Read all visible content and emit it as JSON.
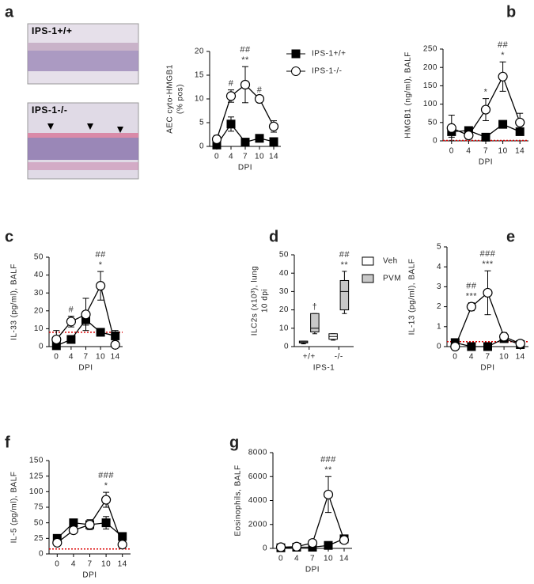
{
  "images": [
    {
      "label": "IPS-1+/+"
    },
    {
      "label": "IPS-1-/-"
    }
  ],
  "chart_data": [
    {
      "type": "line",
      "panel": "a",
      "ylabel": [
        "AEC cyto-HMGB1",
        "(% pos)"
      ],
      "xlabel": "DPI",
      "categories": [
        "0",
        "4",
        "7",
        "10",
        "14"
      ],
      "ylim": [
        0,
        20
      ],
      "yticks": [
        0,
        5,
        10,
        15,
        20
      ],
      "legend": true,
      "series": [
        {
          "name": "IPS-1+/+",
          "marker": "square",
          "color": "#000000",
          "values": [
            0.3,
            4.7,
            0.9,
            1.7,
            1.0
          ],
          "errors": [
            0.3,
            1.5,
            0.4,
            0.6,
            0.8
          ]
        },
        {
          "name": "IPS-1-/-",
          "marker": "circle",
          "color": "#ffffff",
          "values": [
            1.5,
            10.6,
            13,
            10,
            4.2
          ],
          "errors": [
            0.8,
            1.3,
            3.8,
            0.5,
            1.2
          ]
        }
      ],
      "annotations": [
        {
          "x": "4",
          "text": [
            "#"
          ]
        },
        {
          "x": "7",
          "text": [
            "##",
            "**"
          ]
        },
        {
          "x": "10",
          "text": [
            "#"
          ]
        }
      ]
    },
    {
      "type": "line",
      "panel": "b",
      "ylabel": [
        "HMGB1 (ng/ml), BALF"
      ],
      "xlabel": "DPI",
      "categories": [
        "0",
        "4",
        "7",
        "10",
        "14"
      ],
      "ylim": [
        0,
        250
      ],
      "yticks": [
        0,
        50,
        100,
        150,
        200,
        250
      ],
      "ref_line": 1,
      "series": [
        {
          "marker": "square",
          "color": "#000000",
          "values": [
            25,
            28,
            10,
            45,
            25
          ],
          "errors": [
            15,
            10,
            5,
            10,
            8
          ]
        },
        {
          "marker": "circle",
          "color": "#ffffff",
          "values": [
            35,
            15,
            85,
            175,
            50
          ],
          "errors": [
            35,
            10,
            30,
            40,
            25
          ]
        }
      ],
      "annotations": [
        {
          "x": "7",
          "text": [
            "*"
          ]
        },
        {
          "x": "10",
          "text": [
            "##",
            "*"
          ]
        }
      ]
    },
    {
      "type": "line",
      "panel": "c",
      "ylabel": [
        "IL-33 (pg/ml), BALF"
      ],
      "xlabel": "DPI",
      "categories": [
        "0",
        "4",
        "7",
        "10",
        "14"
      ],
      "ylim": [
        0,
        50
      ],
      "yticks": [
        0,
        10,
        20,
        30,
        40,
        50
      ],
      "ref_line": 8,
      "series": [
        {
          "marker": "square",
          "color": "#000000",
          "values": [
            0.5,
            4,
            15,
            8,
            6
          ],
          "errors": [
            1,
            1,
            3,
            1,
            3
          ]
        },
        {
          "marker": "circle",
          "color": "#ffffff",
          "values": [
            4,
            14,
            18,
            34,
            1
          ],
          "errors": [
            5,
            3,
            9,
            8,
            2
          ]
        }
      ],
      "annotations": [
        {
          "x": "4",
          "text": [
            "#"
          ]
        },
        {
          "x": "10",
          "text": [
            "##",
            "*"
          ]
        }
      ]
    },
    {
      "type": "box",
      "panel": "d",
      "ylabel": [
        "ILC2s (x10³), lung",
        "10 dpi"
      ],
      "xlabel": "IPS-1",
      "categories": [
        "+/+",
        "-/-"
      ],
      "ylim": [
        0,
        50
      ],
      "yticks": [
        0,
        10,
        20,
        30,
        40,
        50
      ],
      "legend": true,
      "series": [
        {
          "name": "Veh",
          "color": "#ffffff",
          "boxes": [
            {
              "min": 1.5,
              "q1": 2,
              "median": 2.5,
              "q3": 3,
              "max": 3
            },
            {
              "min": 3.5,
              "q1": 4,
              "median": 5.5,
              "q3": 7,
              "max": 7
            }
          ]
        },
        {
          "name": "PVM",
          "color": "#c8c8c8",
          "boxes": [
            {
              "min": 7,
              "q1": 8,
              "median": 10,
              "q3": 18,
              "max": 18
            },
            {
              "min": 18,
              "q1": 20,
              "median": 30,
              "q3": 36,
              "max": 41
            }
          ]
        }
      ],
      "annotations": [
        {
          "x": "+/+",
          "text": [
            "†"
          ]
        },
        {
          "x": "-/-",
          "text": [
            "##",
            "**"
          ]
        }
      ]
    },
    {
      "type": "line",
      "panel": "e",
      "ylabel": [
        "IL-13 (pg/ml), BALF"
      ],
      "xlabel": "DPI",
      "categories": [
        "0",
        "4",
        "7",
        "10",
        "14"
      ],
      "ylim": [
        0,
        5
      ],
      "yticks": [
        0,
        1,
        2,
        3,
        4,
        5
      ],
      "ref_line": 0.25,
      "series": [
        {
          "marker": "square",
          "color": "#000000",
          "values": [
            0.2,
            0,
            0,
            0.4,
            0.1
          ],
          "errors": [
            0.05,
            0,
            0,
            0.1,
            0.05
          ]
        },
        {
          "marker": "circle",
          "color": "#ffffff",
          "values": [
            0,
            2,
            2.7,
            0.5,
            0.15
          ],
          "errors": [
            0,
            0.2,
            1.1,
            0.2,
            0.1
          ]
        }
      ],
      "annotations": [
        {
          "x": "4",
          "text": [
            "##",
            "***"
          ]
        },
        {
          "x": "7",
          "text": [
            "###",
            "***"
          ]
        }
      ]
    },
    {
      "type": "line",
      "panel": "f",
      "ylabel": [
        "IL-5 (pg/ml), BALF"
      ],
      "xlabel": "DPI",
      "categories": [
        "0",
        "4",
        "7",
        "10",
        "14"
      ],
      "ylim": [
        0,
        150
      ],
      "yticks": [
        0,
        25,
        50,
        75,
        100,
        125,
        150
      ],
      "ref_line": 8,
      "series": [
        {
          "marker": "square",
          "color": "#000000",
          "values": [
            25,
            50,
            47,
            50,
            28
          ],
          "errors": [
            4,
            4,
            6,
            10,
            6
          ]
        },
        {
          "marker": "circle",
          "color": "#ffffff",
          "values": [
            18,
            38,
            47,
            87,
            15
          ],
          "errors": [
            4,
            4,
            8,
            12,
            4
          ]
        }
      ],
      "annotations": [
        {
          "x": "10",
          "text": [
            "###",
            "*"
          ]
        }
      ]
    },
    {
      "type": "line",
      "panel": "g",
      "ylabel": [
        "Eosinophils, BALF"
      ],
      "xlabel": "DPI",
      "categories": [
        "0",
        "4",
        "7",
        "10",
        "14"
      ],
      "ylim": [
        0,
        8000
      ],
      "yticks": [
        0,
        2000,
        4000,
        6000,
        8000
      ],
      "series": [
        {
          "marker": "square",
          "color": "#000000",
          "values": [
            50,
            100,
            100,
            250,
            800
          ],
          "errors": [
            30,
            50,
            50,
            100,
            250
          ]
        },
        {
          "marker": "circle",
          "color": "#ffffff",
          "values": [
            100,
            150,
            450,
            4500,
            700
          ],
          "errors": [
            50,
            80,
            150,
            1500,
            250
          ]
        }
      ],
      "annotations": [
        {
          "x": "10",
          "text": [
            "###",
            "**"
          ]
        }
      ]
    }
  ]
}
